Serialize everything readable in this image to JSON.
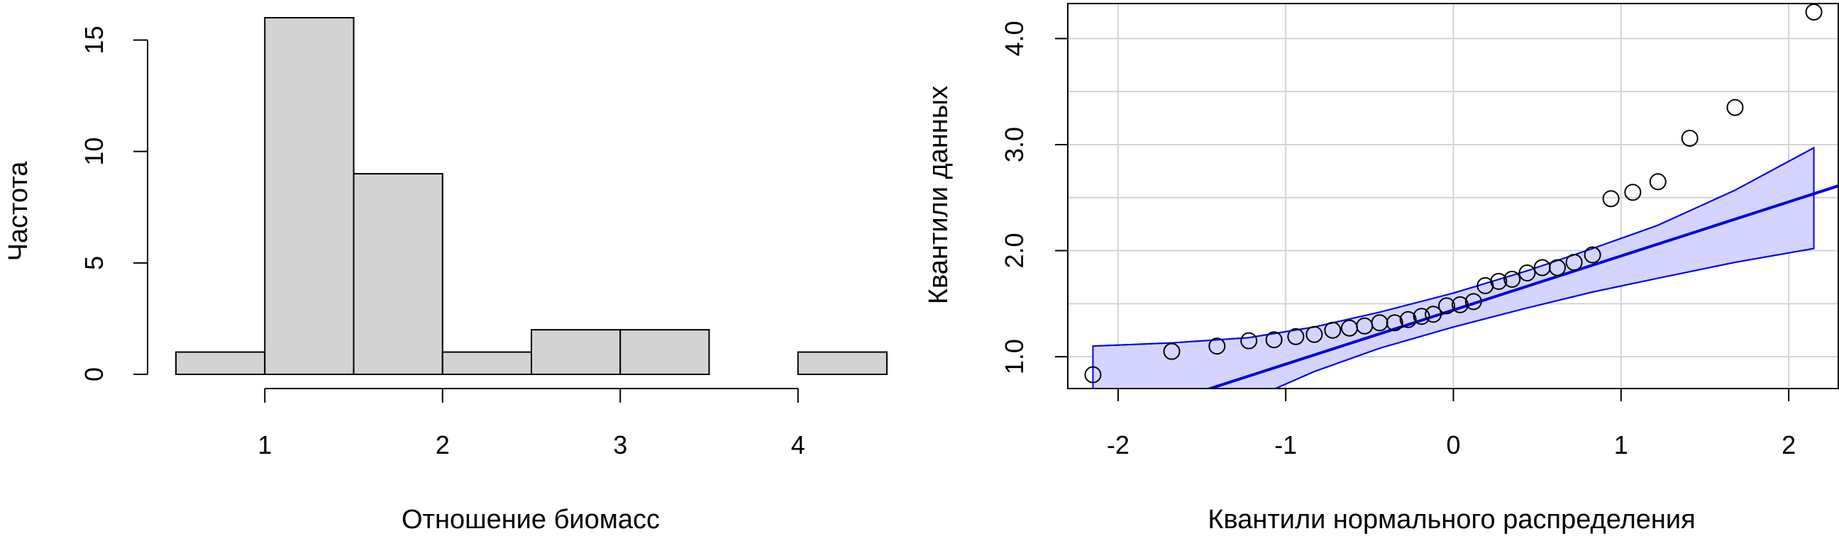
{
  "colors": {
    "bar_fill": "#d3d3d3",
    "band_fill": "#d4d4ff",
    "band_line": "#0000ee",
    "ref_line": "#0000dd",
    "grid": "#d3d3d3"
  },
  "chart_data": [
    {
      "type": "bar",
      "subtype": "histogram",
      "xlabel": "Отношение биомасс",
      "ylabel": "Частота",
      "bin_edges": [
        0.5,
        1.0,
        1.5,
        2.0,
        2.5,
        3.0,
        3.5,
        4.0,
        4.5
      ],
      "values": [
        1,
        16,
        9,
        1,
        2,
        2,
        0,
        1
      ],
      "xlim": [
        0.5,
        4.5
      ],
      "ylim": [
        0,
        16
      ],
      "x_ticks": [
        "1",
        "2",
        "3",
        "4"
      ],
      "y_ticks": [
        "0",
        "5",
        "10",
        "15"
      ],
      "grid": false
    },
    {
      "type": "scatter",
      "subtype": "qq-plot",
      "xlabel": "Квантили нормального распределения",
      "ylabel": "Квантили данных",
      "x_ticks": [
        "-2",
        "-1",
        "0",
        "1",
        "2"
      ],
      "y_ticks": [
        "1.0",
        "2.0",
        "3.0",
        "4.0"
      ],
      "xlim": [
        -2.3,
        2.3
      ],
      "ylim": [
        0.7,
        4.33
      ],
      "grid": true,
      "points": [
        [
          -2.15,
          0.83
        ],
        [
          -1.68,
          1.05
        ],
        [
          -1.41,
          1.1
        ],
        [
          -1.22,
          1.15
        ],
        [
          -1.07,
          1.16
        ],
        [
          -0.94,
          1.19
        ],
        [
          -0.83,
          1.21
        ],
        [
          -0.72,
          1.25
        ],
        [
          -0.62,
          1.27
        ],
        [
          -0.53,
          1.29
        ],
        [
          -0.44,
          1.32
        ],
        [
          -0.35,
          1.32
        ],
        [
          -0.27,
          1.35
        ],
        [
          -0.19,
          1.38
        ],
        [
          -0.12,
          1.4
        ],
        [
          -0.04,
          1.48
        ],
        [
          0.04,
          1.49
        ],
        [
          0.12,
          1.52
        ],
        [
          0.19,
          1.67
        ],
        [
          0.27,
          1.71
        ],
        [
          0.35,
          1.73
        ],
        [
          0.44,
          1.79
        ],
        [
          0.53,
          1.84
        ],
        [
          0.62,
          1.84
        ],
        [
          0.72,
          1.89
        ],
        [
          0.83,
          1.96
        ],
        [
          0.94,
          2.49
        ],
        [
          1.07,
          2.55
        ],
        [
          1.22,
          2.65
        ],
        [
          1.41,
          3.06
        ],
        [
          1.68,
          3.35
        ],
        [
          2.15,
          4.25
        ]
      ],
      "reference_line": {
        "intercept": 1.44,
        "slope": 0.51
      },
      "confidence_band": {
        "x": [
          -2.15,
          -1.68,
          -1.22,
          -0.83,
          -0.44,
          0.0,
          0.44,
          0.83,
          1.22,
          1.68,
          2.15
        ],
        "upper": [
          1.1,
          1.13,
          1.18,
          1.28,
          1.42,
          1.6,
          1.81,
          2.02,
          2.24,
          2.57,
          2.97
        ],
        "lower": [
          -0.07,
          0.25,
          0.59,
          0.86,
          1.08,
          1.28,
          1.46,
          1.61,
          1.74,
          1.89,
          2.02
        ]
      }
    }
  ]
}
